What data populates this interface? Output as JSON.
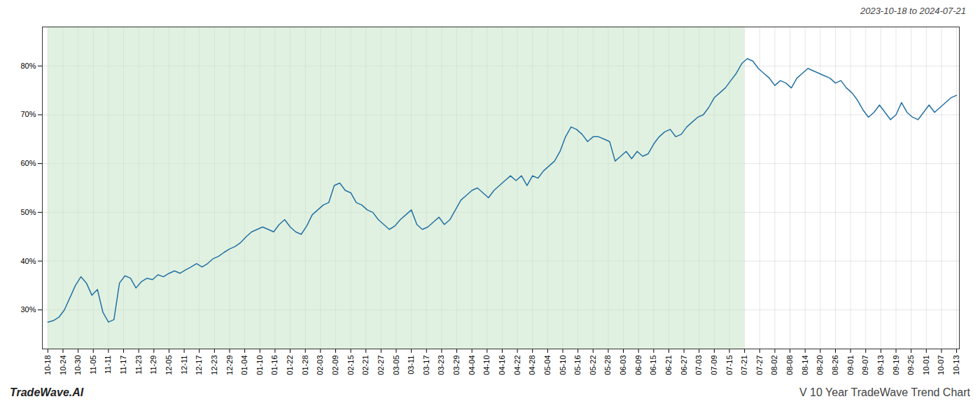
{
  "chart_data": {
    "type": "line",
    "subtitle": "2023-10-18 to 2024-07-21",
    "annotations": [
      "TradeWave.AI",
      "V 10 Year TradeWave Trend Chart"
    ],
    "color": "#2471a3",
    "grid": true,
    "spans": [
      {
        "xlim": [
          0,
          126.5
        ],
        "color": "#c8e6c9"
      }
    ],
    "xlim": [
      -1,
      165.5
    ],
    "xticks": [
      {
        "value": 0,
        "label": "10-18"
      },
      {
        "value": 2.75,
        "label": "10-24"
      },
      {
        "value": 5.5,
        "label": "10-30"
      },
      {
        "value": 8.25,
        "label": "11-05"
      },
      {
        "value": 11,
        "label": "11-11"
      },
      {
        "value": 13.75,
        "label": "11-17"
      },
      {
        "value": 16.5,
        "label": "11-23"
      },
      {
        "value": 19.25,
        "label": "11-29"
      },
      {
        "value": 22,
        "label": "12-05"
      },
      {
        "value": 24.75,
        "label": "12-11"
      },
      {
        "value": 27.5,
        "label": "12-17"
      },
      {
        "value": 30.25,
        "label": "12-23"
      },
      {
        "value": 33,
        "label": "12-29"
      },
      {
        "value": 35.75,
        "label": "01-04"
      },
      {
        "value": 38.5,
        "label": "01-10"
      },
      {
        "value": 41.25,
        "label": "01-16"
      },
      {
        "value": 44,
        "label": "01-22"
      },
      {
        "value": 46.75,
        "label": "01-28"
      },
      {
        "value": 49.5,
        "label": "02-03"
      },
      {
        "value": 52.25,
        "label": "02-09"
      },
      {
        "value": 55,
        "label": "02-15"
      },
      {
        "value": 57.75,
        "label": "02-21"
      },
      {
        "value": 60.5,
        "label": "02-27"
      },
      {
        "value": 63.25,
        "label": "03-05"
      },
      {
        "value": 66,
        "label": "03-11"
      },
      {
        "value": 68.75,
        "label": "03-17"
      },
      {
        "value": 71.5,
        "label": "03-23"
      },
      {
        "value": 74.25,
        "label": "03-29"
      },
      {
        "value": 77,
        "label": "04-04"
      },
      {
        "value": 79.75,
        "label": "04-10"
      },
      {
        "value": 82.5,
        "label": "04-16"
      },
      {
        "value": 85.25,
        "label": "04-22"
      },
      {
        "value": 88,
        "label": "04-28"
      },
      {
        "value": 90.75,
        "label": "05-04"
      },
      {
        "value": 93.5,
        "label": "05-10"
      },
      {
        "value": 96.25,
        "label": "05-16"
      },
      {
        "value": 99,
        "label": "05-22"
      },
      {
        "value": 101.75,
        "label": "05-28"
      },
      {
        "value": 104.5,
        "label": "06-03"
      },
      {
        "value": 107.25,
        "label": "06-09"
      },
      {
        "value": 110,
        "label": "06-15"
      },
      {
        "value": 112.75,
        "label": "06-21"
      },
      {
        "value": 115.5,
        "label": "06-27"
      },
      {
        "value": 118.25,
        "label": "07-03"
      },
      {
        "value": 121,
        "label": "07-09"
      },
      {
        "value": 123.75,
        "label": "07-15"
      },
      {
        "value": 126.5,
        "label": "07-21"
      },
      {
        "value": 129.25,
        "label": "07-27"
      },
      {
        "value": 132,
        "label": "08-02"
      },
      {
        "value": 134.75,
        "label": "08-08"
      },
      {
        "value": 137.5,
        "label": "08-14"
      },
      {
        "value": 140.25,
        "label": "08-20"
      },
      {
        "value": 143,
        "label": "08-26"
      },
      {
        "value": 145.75,
        "label": "09-01"
      },
      {
        "value": 148.5,
        "label": "09-07"
      },
      {
        "value": 151.25,
        "label": "09-13"
      },
      {
        "value": 154,
        "label": "09-19"
      },
      {
        "value": 156.75,
        "label": "09-25"
      },
      {
        "value": 159.5,
        "label": "10-01"
      },
      {
        "value": 162.25,
        "label": "10-07"
      },
      {
        "value": 165,
        "label": "10-13"
      }
    ],
    "ylim": [
      22,
      88
    ],
    "yticks": [
      {
        "value": 30,
        "label": "30%"
      },
      {
        "value": 40,
        "label": "40%"
      },
      {
        "value": 50,
        "label": "50%"
      },
      {
        "value": 60,
        "label": "60%"
      },
      {
        "value": 70,
        "label": "70%"
      },
      {
        "value": 80,
        "label": "80%"
      }
    ],
    "values": [
      27.5,
      27.8,
      28.5,
      30.0,
      32.5,
      35.0,
      36.8,
      35.5,
      33.0,
      34.2,
      29.5,
      27.5,
      28.0,
      35.5,
      37.0,
      36.5,
      34.5,
      35.8,
      36.5,
      36.2,
      37.2,
      36.8,
      37.5,
      38.0,
      37.5,
      38.2,
      38.8,
      39.5,
      38.8,
      39.5,
      40.5,
      41.0,
      41.8,
      42.5,
      43.0,
      43.8,
      45.0,
      46.0,
      46.5,
      47.0,
      46.5,
      46.0,
      47.5,
      48.5,
      47.0,
      46.0,
      45.5,
      47.2,
      49.5,
      50.5,
      51.5,
      52.0,
      55.5,
      56.0,
      54.5,
      54.0,
      52.0,
      51.5,
      50.5,
      50.0,
      48.5,
      47.5,
      46.5,
      47.2,
      48.5,
      49.5,
      50.5,
      47.5,
      46.5,
      47.0,
      48.0,
      49.0,
      47.5,
      48.5,
      50.5,
      52.5,
      53.5,
      54.5,
      55.0,
      54.0,
      53.0,
      54.5,
      55.5,
      56.5,
      57.5,
      56.5,
      57.5,
      55.5,
      57.5,
      57.0,
      58.5,
      59.5,
      60.5,
      62.5,
      65.5,
      67.5,
      67.0,
      66.0,
      64.5,
      65.5,
      65.5,
      65.0,
      64.5,
      60.5,
      61.5,
      62.5,
      61.0,
      62.5,
      61.5,
      62.0,
      64.0,
      65.5,
      66.5,
      67.0,
      65.5,
      66.0,
      67.5,
      68.5,
      69.5,
      70.0,
      71.5,
      73.5,
      74.5,
      75.5,
      77.0,
      78.5,
      80.5,
      81.5,
      81.0,
      79.5,
      78.5,
      77.5,
      76.0,
      77.0,
      76.5,
      75.5,
      77.5,
      78.5,
      79.5,
      79.0,
      78.5,
      78.0,
      77.5,
      76.5,
      77.0,
      75.5,
      74.5,
      73.0,
      71.0,
      69.5,
      70.5,
      72.0,
      70.5,
      69.0,
      70.0,
      72.5,
      70.5,
      69.5,
      69.0,
      70.5,
      72.0,
      70.5,
      71.5,
      72.5,
      73.5,
      74.0
    ]
  }
}
